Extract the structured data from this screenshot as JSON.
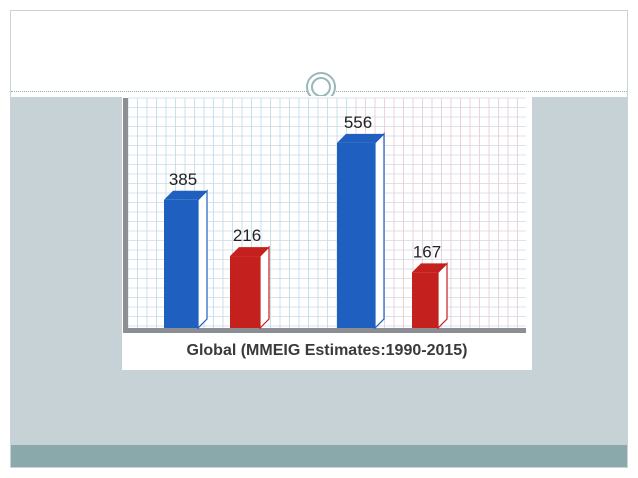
{
  "colors": {
    "blue": "#1f5fbf",
    "red": "#c4201d",
    "slide_body": "#c7d2d6",
    "footer": "#8aa9ab"
  },
  "chart_data": {
    "type": "bar",
    "values": [
      385,
      216,
      556,
      167
    ],
    "value_labels": [
      "385",
      "216",
      "556",
      "167"
    ],
    "bar_colors": [
      "blue",
      "red",
      "blue",
      "red"
    ],
    "ylim": [
      0,
      600
    ],
    "grid": true,
    "caption": "Global (MMEIG Estimates:1990-2015)"
  }
}
